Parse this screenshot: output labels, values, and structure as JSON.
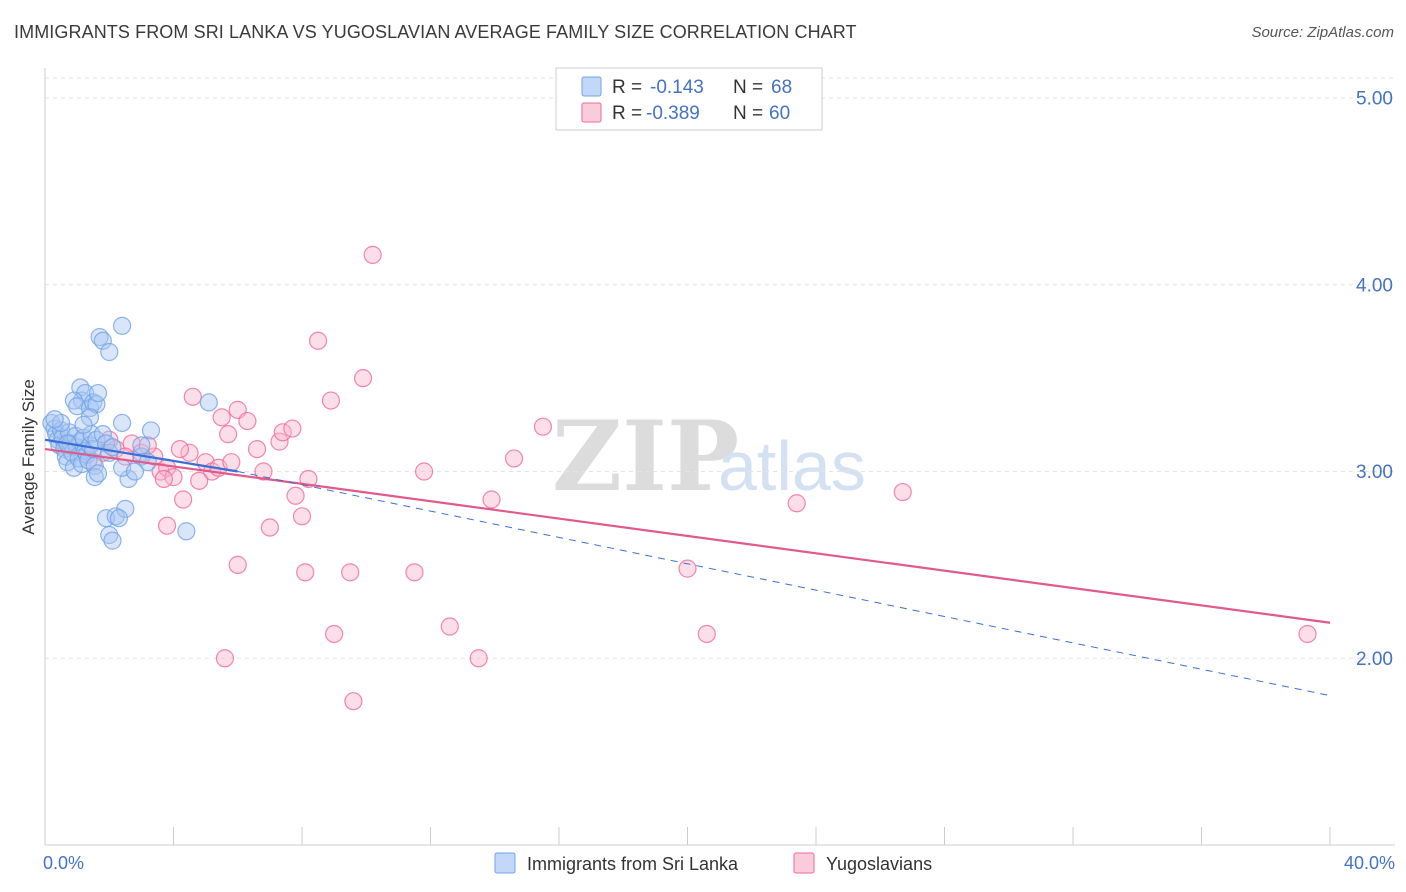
{
  "chart_data": {
    "type": "scatter",
    "title": "IMMIGRANTS FROM SRI LANKA VS YUGOSLAVIAN AVERAGE FAMILY SIZE CORRELATION CHART",
    "source": "Source: ZipAtlas.com",
    "ylabel": "Average Family Size",
    "xlabel": "",
    "xlim": [
      0,
      40
    ],
    "ylim": [
      1.0,
      5.15
    ],
    "x_tick_labels": [
      "0.0%",
      "40.0%"
    ],
    "y_ticks": [
      2.0,
      3.0,
      4.0,
      5.0
    ],
    "y_tick_labels": [
      "2.00",
      "3.00",
      "4.00",
      "5.00"
    ],
    "watermark": [
      "ZIP",
      "atlas"
    ],
    "legend_stats": [
      {
        "r_label": "R =",
        "r_value": "-0.143",
        "n_label": "N =",
        "n_value": "68"
      },
      {
        "r_label": "R =",
        "r_value": "-0.389",
        "n_label": "N =",
        "n_value": "60"
      }
    ],
    "series": [
      {
        "name": "Immigrants from Sri Lanka",
        "color": "#6fa3e8",
        "fill": "#aac8f2",
        "trend": {
          "solid": [
            [
              0,
              3.17
            ],
            [
              6.0,
              3.0
            ]
          ],
          "dashed": [
            [
              6.0,
              3.0
            ],
            [
              40,
              1.8
            ]
          ],
          "color": "#3a6fd8"
        },
        "points": [
          [
            0.2,
            3.26
          ],
          [
            0.3,
            3.23
          ],
          [
            0.35,
            3.2
          ],
          [
            0.4,
            3.17
          ],
          [
            0.45,
            3.14
          ],
          [
            0.5,
            3.22
          ],
          [
            0.55,
            3.18
          ],
          [
            0.6,
            3.12
          ],
          [
            0.65,
            3.08
          ],
          [
            0.7,
            3.05
          ],
          [
            0.75,
            3.21
          ],
          [
            0.8,
            3.15
          ],
          [
            0.85,
            3.1
          ],
          [
            0.9,
            3.02
          ],
          [
            0.95,
            3.19
          ],
          [
            1.0,
            3.13
          ],
          [
            1.05,
            3.07
          ],
          [
            1.1,
            3.16
          ],
          [
            1.15,
            3.04
          ],
          [
            1.2,
            3.18
          ],
          [
            1.25,
            3.11
          ],
          [
            1.3,
            3.09
          ],
          [
            1.35,
            3.06
          ],
          [
            1.4,
            3.14
          ],
          [
            1.45,
            3.2
          ],
          [
            1.5,
            3.12
          ],
          [
            1.55,
            3.03
          ],
          [
            1.6,
            3.17
          ],
          [
            1.1,
            3.45
          ],
          [
            1.15,
            3.38
          ],
          [
            1.25,
            3.42
          ],
          [
            0.9,
            3.38
          ],
          [
            1.0,
            3.35
          ],
          [
            1.4,
            3.34
          ],
          [
            1.5,
            3.37
          ],
          [
            1.6,
            3.36
          ],
          [
            1.65,
            3.42
          ],
          [
            1.4,
            3.29
          ],
          [
            1.8,
            3.2
          ],
          [
            1.9,
            3.15
          ],
          [
            2.0,
            3.1
          ],
          [
            2.1,
            3.13
          ],
          [
            1.7,
            3.72
          ],
          [
            1.8,
            3.7
          ],
          [
            2.0,
            3.64
          ],
          [
            2.4,
            3.78
          ],
          [
            1.9,
            2.75
          ],
          [
            2.0,
            2.66
          ],
          [
            2.1,
            2.63
          ],
          [
            2.2,
            2.76
          ],
          [
            2.5,
            2.8
          ],
          [
            2.3,
            2.75
          ],
          [
            2.6,
            2.96
          ],
          [
            2.4,
            3.02
          ],
          [
            1.55,
            2.97
          ],
          [
            1.65,
            2.99
          ],
          [
            3.0,
            3.08
          ],
          [
            3.2,
            3.05
          ],
          [
            3.0,
            3.14
          ],
          [
            2.4,
            3.26
          ],
          [
            3.3,
            3.22
          ],
          [
            5.1,
            3.37
          ],
          [
            4.4,
            2.68
          ],
          [
            2.8,
            3.0
          ],
          [
            0.5,
            3.26
          ],
          [
            0.3,
            3.28
          ],
          [
            0.7,
            3.15
          ],
          [
            1.2,
            3.25
          ]
        ]
      },
      {
        "name": "Yugoslavians",
        "color": "#f06a9a",
        "fill": "#f7b6cc",
        "trend": {
          "solid": [
            [
              0,
              3.12
            ],
            [
              40,
              2.19
            ]
          ],
          "color": "#e05a8a"
        },
        "points": [
          [
            0.6,
            3.15
          ],
          [
            1.2,
            3.12
          ],
          [
            1.8,
            3.1
          ],
          [
            2.2,
            3.12
          ],
          [
            2.7,
            3.15
          ],
          [
            3.0,
            3.1
          ],
          [
            3.4,
            3.08
          ],
          [
            3.6,
            3.0
          ],
          [
            3.8,
            3.02
          ],
          [
            4.0,
            2.97
          ],
          [
            4.3,
            2.85
          ],
          [
            4.5,
            3.1
          ],
          [
            4.6,
            3.4
          ],
          [
            5.0,
            3.05
          ],
          [
            5.2,
            3.0
          ],
          [
            5.4,
            3.02
          ],
          [
            5.5,
            3.29
          ],
          [
            5.7,
            3.2
          ],
          [
            6.0,
            3.33
          ],
          [
            6.3,
            3.27
          ],
          [
            6.6,
            3.12
          ],
          [
            6.8,
            3.0
          ],
          [
            7.0,
            2.7
          ],
          [
            7.3,
            3.16
          ],
          [
            7.4,
            3.21
          ],
          [
            7.7,
            3.23
          ],
          [
            7.8,
            2.87
          ],
          [
            8.0,
            2.76
          ],
          [
            8.2,
            2.96
          ],
          [
            8.5,
            3.7
          ],
          [
            8.9,
            3.38
          ],
          [
            3.7,
            2.96
          ],
          [
            3.8,
            2.71
          ],
          [
            4.8,
            2.95
          ],
          [
            6.0,
            2.5
          ],
          [
            5.6,
            2.0
          ],
          [
            8.1,
            2.46
          ],
          [
            9.0,
            2.13
          ],
          [
            9.5,
            2.46
          ],
          [
            9.9,
            3.5
          ],
          [
            10.2,
            4.16
          ],
          [
            11.5,
            2.46
          ],
          [
            11.8,
            3.0
          ],
          [
            12.6,
            2.17
          ],
          [
            13.5,
            2.0
          ],
          [
            13.9,
            2.85
          ],
          [
            14.6,
            3.07
          ],
          [
            15.5,
            3.24
          ],
          [
            9.6,
            1.77
          ],
          [
            20.0,
            2.48
          ],
          [
            20.6,
            2.13
          ],
          [
            23.4,
            2.83
          ],
          [
            26.7,
            2.89
          ],
          [
            39.3,
            2.13
          ],
          [
            2.5,
            3.08
          ],
          [
            3.2,
            3.14
          ],
          [
            1.5,
            3.05
          ],
          [
            2.0,
            3.17
          ],
          [
            4.2,
            3.12
          ],
          [
            5.8,
            3.05
          ]
        ]
      }
    ]
  }
}
